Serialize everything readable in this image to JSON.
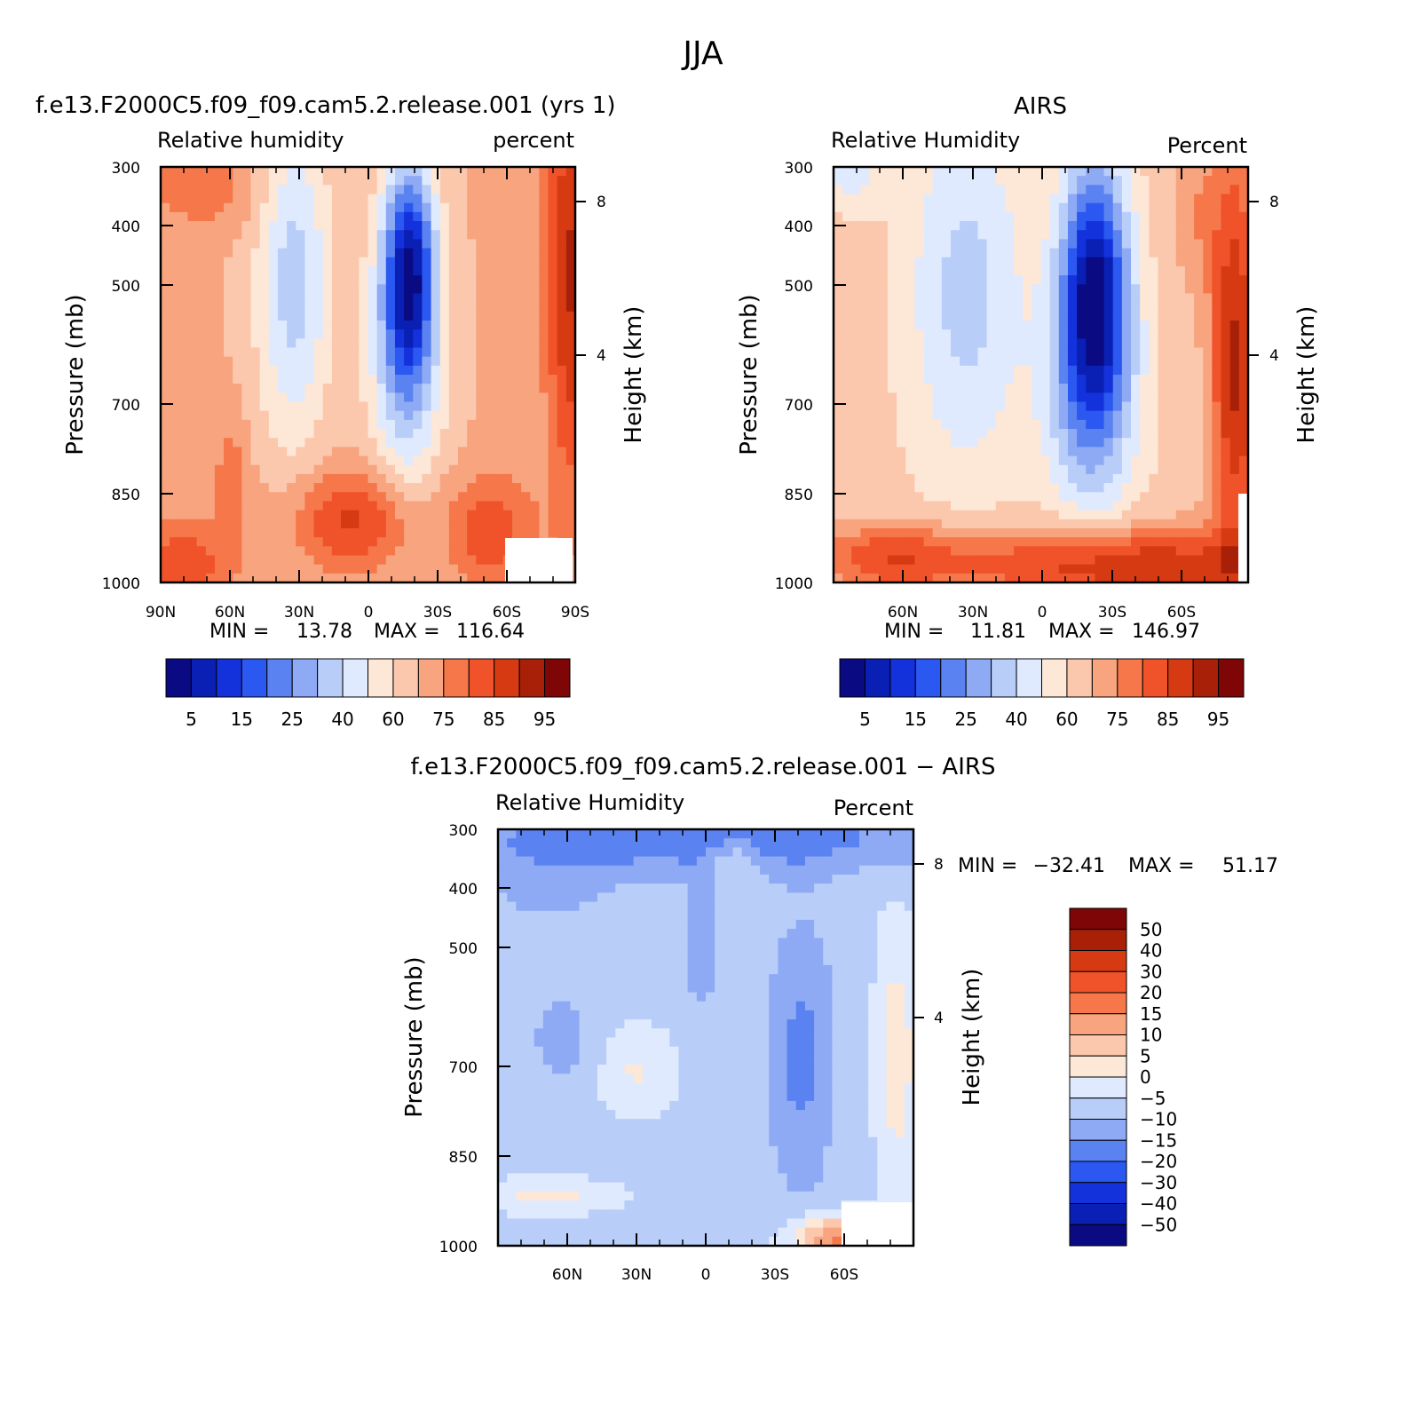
{
  "page": {
    "title": "JJA"
  },
  "chart_data": [
    {
      "type": "heatmap",
      "id": "model",
      "title": "f.e13.F2000C5.f09_f09.cam5.2.release.001 (yrs 1)",
      "left_label": "Relative humidity",
      "right_label": "percent",
      "ylabel": "Pressure (mb)",
      "ylabel_right": "Height (km)",
      "yticks": [
        "300",
        "400",
        "500",
        "700",
        "850",
        "1000"
      ],
      "yticks_right": [
        "8",
        "4"
      ],
      "xticks": [
        "90N",
        "60N",
        "30N",
        "0",
        "30S",
        "60S",
        "90S"
      ],
      "min_label": "MIN =",
      "min_value": "13.78",
      "max_label": "MAX =",
      "max_value": "116.64",
      "legend_labels": [
        "5",
        "15",
        "25",
        "40",
        "60",
        "75",
        "85",
        "95"
      ],
      "palette": [
        "#0a0a82",
        "#0a20b4",
        "#1432dc",
        "#2a58f0",
        "#5a82f0",
        "#8eaaf5",
        "#b8cdf8",
        "#dfeaff",
        "#fde7d6",
        "#fbc8ad",
        "#f7a47f",
        "#f5774a",
        "#f0522a",
        "#d63a12",
        "#a82008",
        "#7e0606"
      ],
      "zmin": 13.78,
      "zmax": 116.64
    },
    {
      "type": "heatmap",
      "id": "obs",
      "title": "AIRS",
      "left_label": "Relative Humidity",
      "right_label": "Percent",
      "ylabel": "Pressure (mb)",
      "ylabel_right": "Height (km)",
      "yticks": [
        "300",
        "400",
        "500",
        "700",
        "850",
        "1000"
      ],
      "yticks_right": [
        "8",
        "4"
      ],
      "xticks": [
        "60N",
        "30N",
        "0",
        "30S",
        "60S"
      ],
      "min_label": "MIN =",
      "min_value": "11.81",
      "max_label": "MAX =",
      "max_value": "146.97",
      "legend_labels": [
        "5",
        "15",
        "25",
        "40",
        "60",
        "75",
        "85",
        "95"
      ],
      "palette": [
        "#0a0a82",
        "#0a20b4",
        "#1432dc",
        "#2a58f0",
        "#5a82f0",
        "#8eaaf5",
        "#b8cdf8",
        "#dfeaff",
        "#fde7d6",
        "#fbc8ad",
        "#f7a47f",
        "#f5774a",
        "#f0522a",
        "#d63a12",
        "#a82008",
        "#7e0606"
      ],
      "zmin": 11.81,
      "zmax": 146.97
    },
    {
      "type": "heatmap",
      "id": "diff",
      "title": "f.e13.F2000C5.f09_f09.cam5.2.release.001 − AIRS",
      "left_label": "Relative Humidity",
      "right_label": "Percent",
      "ylabel": "Pressure (mb)",
      "ylabel_right": "Height (km)",
      "yticks": [
        "300",
        "400",
        "500",
        "700",
        "850",
        "1000"
      ],
      "yticks_right": [
        "8",
        "4"
      ],
      "xticks": [
        "60N",
        "30N",
        "0",
        "30S",
        "60S"
      ],
      "min_label": "MIN =",
      "min_value": "−32.41",
      "max_label": "MAX =",
      "max_value": "51.17",
      "legend_labels": [
        "50",
        "40",
        "30",
        "20",
        "15",
        "10",
        "5",
        "0",
        "−5",
        "−10",
        "−15",
        "−20",
        "−30",
        "−40",
        "−50"
      ],
      "palette": [
        "#7e0606",
        "#a82008",
        "#d63a12",
        "#f0522a",
        "#f5774a",
        "#f7a47f",
        "#fbc8ad",
        "#fde7d6",
        "#dfeaff",
        "#b8cdf8",
        "#8eaaf5",
        "#5a82f0",
        "#2a58f0",
        "#1432dc",
        "#0a20b4",
        "#0a0a82"
      ],
      "zmin": -32.41,
      "zmax": 51.17
    }
  ]
}
